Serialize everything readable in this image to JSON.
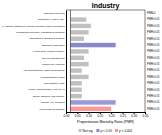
{
  "chart_data": {
    "type": "bar",
    "orientation": "horizontal",
    "title": "Industry",
    "xlabel": "Proportionate Mortality Ratio (PMR)",
    "categories": [
      "Ambulance Services",
      "Information - Public Adm.",
      "F.I. Banks Institutions, Medical Facilities, Radio Processing",
      "Professional Scientific, Management Systems",
      "Administrative, Building & Support",
      "Education, Education",
      "Health Care, Medical Laundry",
      "Plan for Management",
      "Finance/Ins, Libraries",
      "Arts, Entertainment, Other Recreational",
      "Accommodation/Hotels",
      "Real Estate/R, Risk",
      "Repair, Transportation, not excl. S",
      "Beauty, Barbers, and Laundry",
      "Laundry, Dry Cleaning",
      "Public National Schools"
    ],
    "values": [
      0.0,
      0.07,
      0.09,
      0.08,
      0.06,
      0.2,
      0.08,
      0.06,
      0.08,
      0.05,
      0.08,
      0.05,
      0.05,
      0.05,
      0.2,
      0.18
    ],
    "colors": [
      "#c0c0c0",
      "#c0c0c0",
      "#c0c0c0",
      "#c0c0c0",
      "#c0c0c0",
      "#8888cc",
      "#c0c0c0",
      "#c0c0c0",
      "#c0c0c0",
      "#c0c0c0",
      "#c0c0c0",
      "#c0c0c0",
      "#c0c0c0",
      "#c0c0c0",
      "#9999dd",
      "#ff9999"
    ],
    "baseline": 0.02,
    "annotations": [
      "PMR=1",
      "PMR<0.05",
      "PMR<0.05",
      "PMR<0.05",
      "PMR<0.05",
      "PMR<0.05",
      "PMR<0.05",
      "PMR<0.05",
      "PMR<0.05",
      "PMR<0.05",
      "PMR<0.05",
      "PMR<0.05",
      "PMR<0.05",
      "PMR<0.05",
      "PMR<0.05",
      "PMR<0.05"
    ],
    "xlim": [
      0,
      0.35
    ],
    "xticks": [
      {
        "value": 0,
        "label": "0.00"
      },
      0.05,
      {
        "value": 0.1,
        "label": "0.10"
      },
      0.15,
      {
        "value": 0.2,
        "label": "0.20"
      },
      0.25,
      {
        "value": 0.3,
        "label": "0.30"
      },
      0.35
    ],
    "legend": "bottom",
    "legend_labels": [
      "Not sig.",
      "p < 0.05",
      "p < 0.001"
    ],
    "legend_colors": [
      "#c0c0c0",
      "#8888cc",
      "#ff9999"
    ]
  }
}
